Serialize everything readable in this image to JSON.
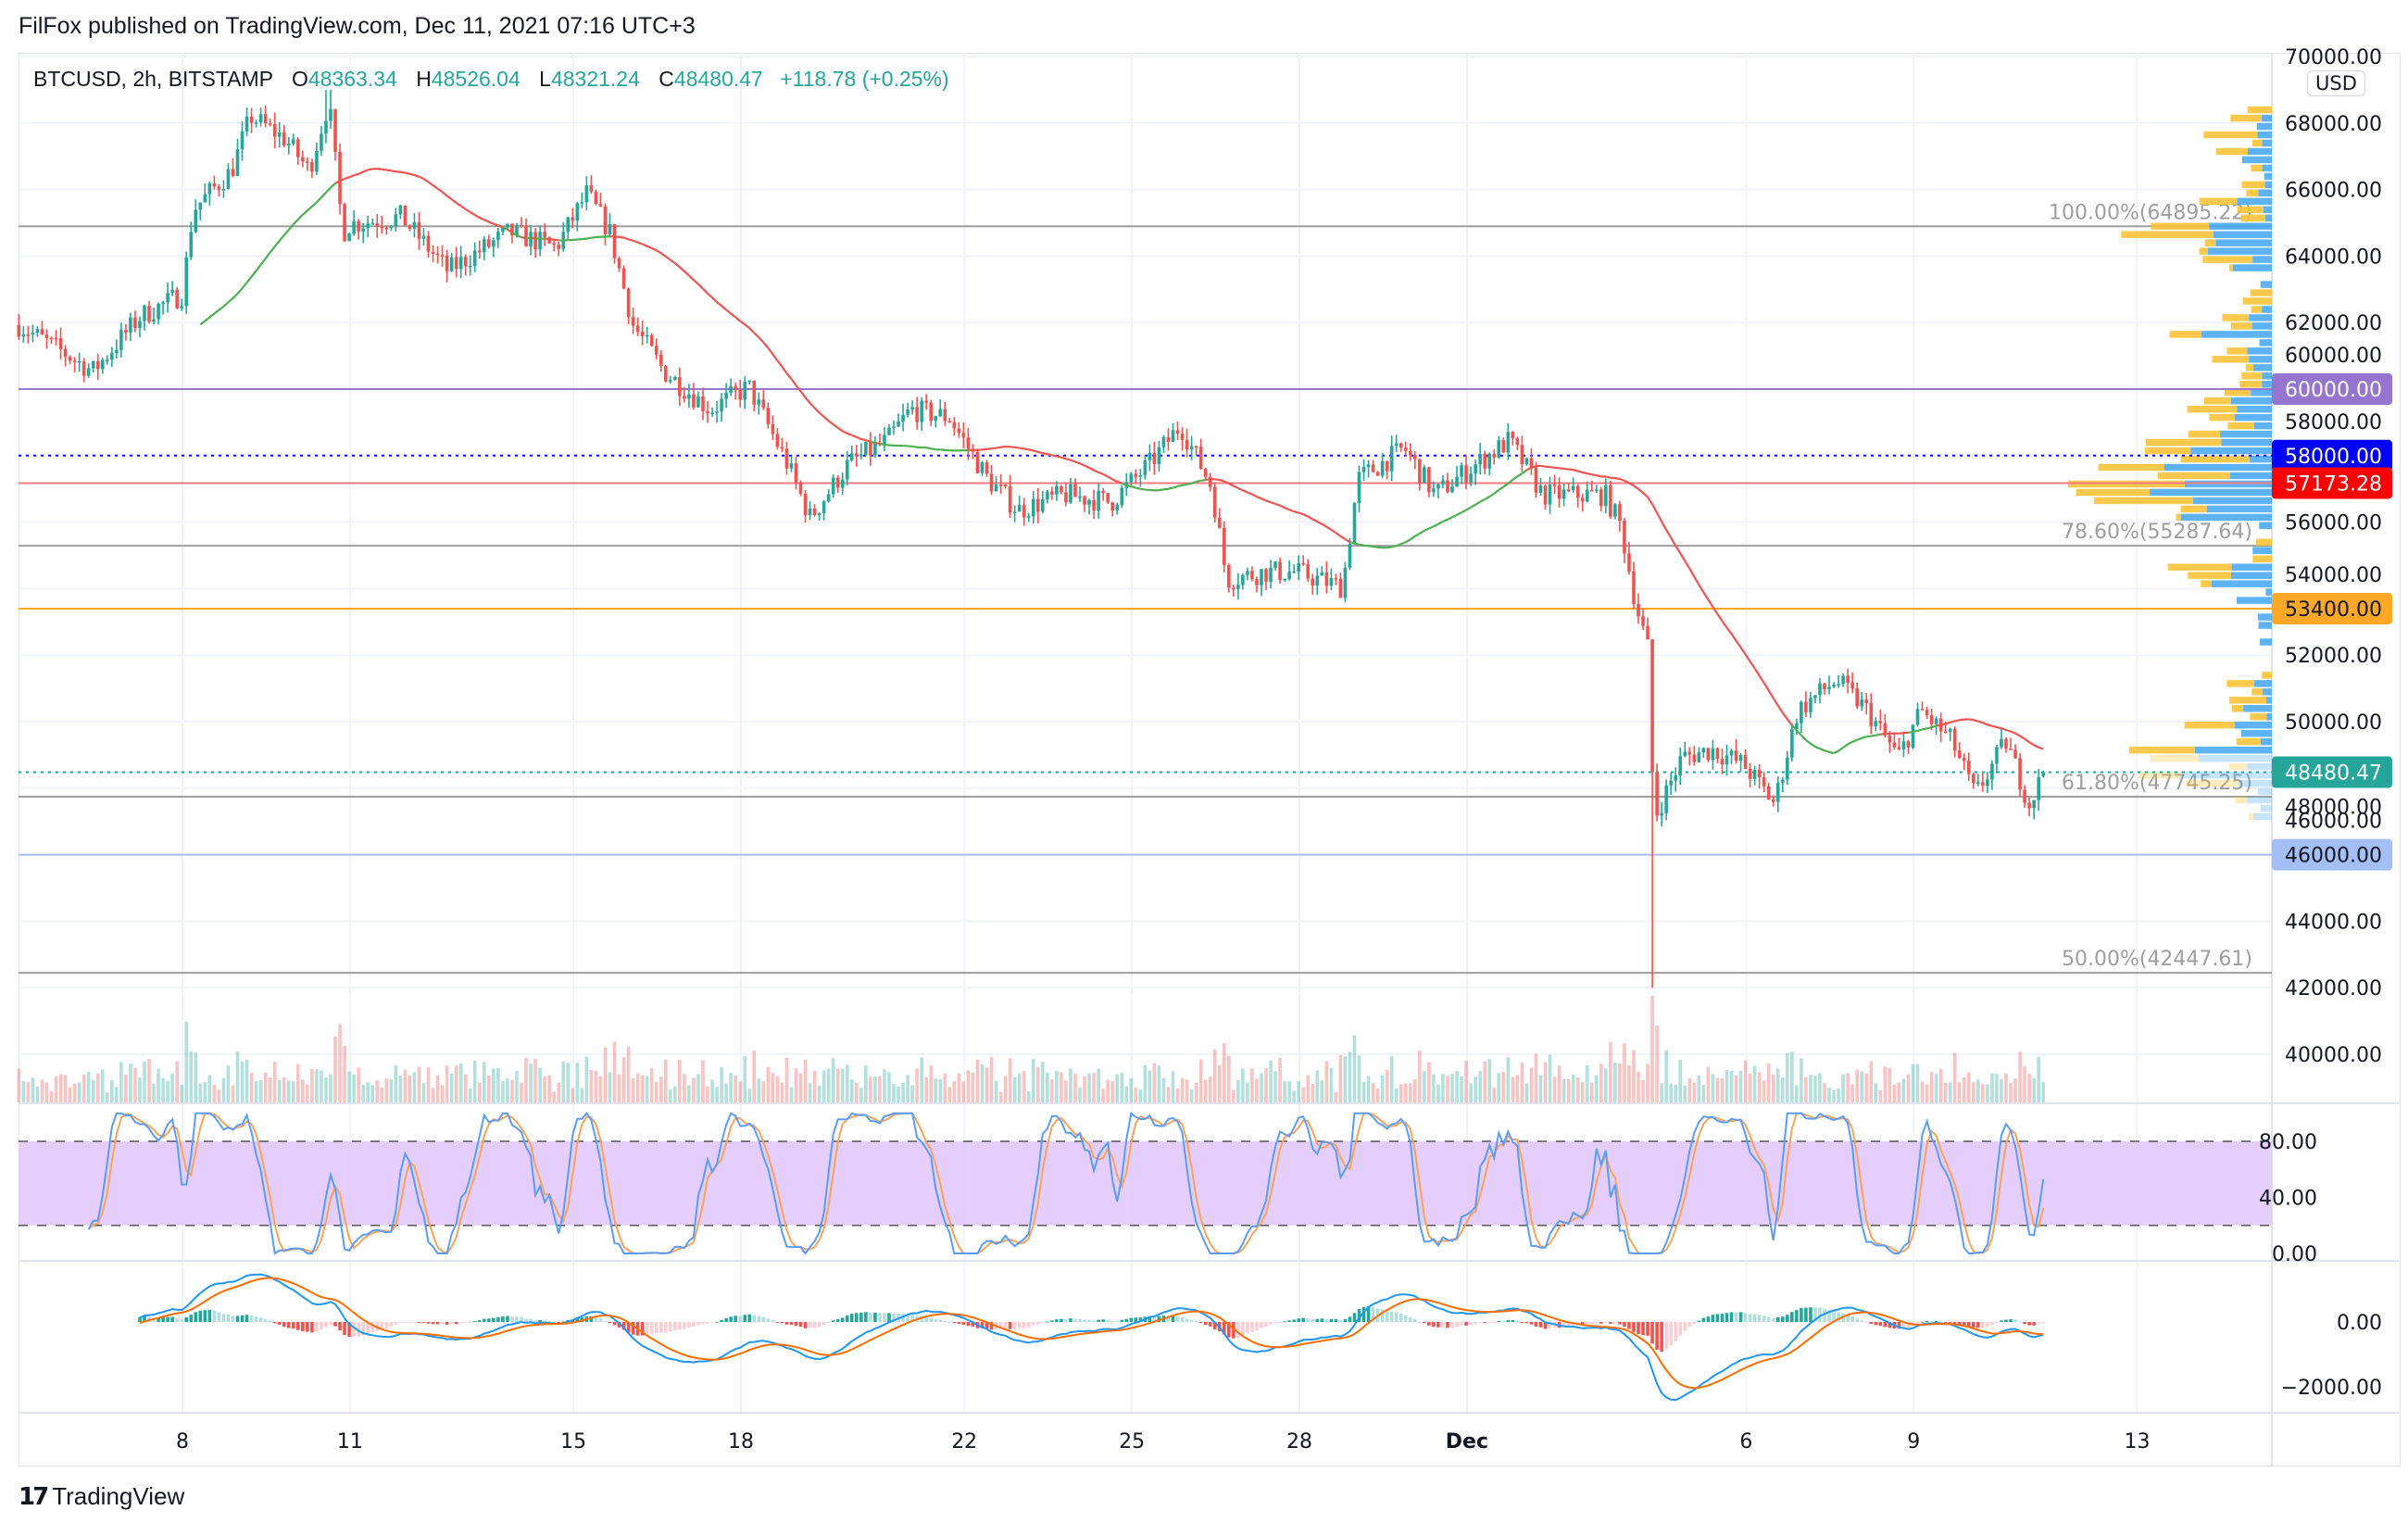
{
  "header": {
    "publish_line": "FilFox published on TradingView.com, Dec 11, 2021 07:16 UTC+3"
  },
  "legend": {
    "symbol": "BTCUSD, 2h, BITSTAMP",
    "o_label": "O",
    "o": "48363.34",
    "h_label": "H",
    "h": "48526.04",
    "l_label": "L",
    "l": "48321.24",
    "c_label": "C",
    "c": "48480.47",
    "change": "+118.78 (+0.25%)"
  },
  "price_axis": {
    "currency": "USD",
    "ticks": [
      "70000.00",
      "68000.00",
      "66000.00",
      "64000.00",
      "62000.00",
      "60000.00",
      "58000.00",
      "56000.00",
      "54000.00",
      "52000.00",
      "50000.00",
      "48000.00",
      "46000.00",
      "44000.00",
      "42000.00",
      "40000.00"
    ]
  },
  "levels": [
    {
      "value": 60000,
      "label": "60000.00",
      "color": "#9575cd",
      "text_color": "#ffffff",
      "style": "solid"
    },
    {
      "value": 58000,
      "label": "58000.00",
      "color": "#0000ff",
      "text_color": "#ffffff",
      "style": "dotted"
    },
    {
      "value": 57173.28,
      "label": "57173.28",
      "color": "#ff0000",
      "line_color": "#f77c80",
      "text_color": "#ffffff",
      "style": "solid"
    },
    {
      "value": 53400,
      "label": "53400.00",
      "color": "#ffa726",
      "text_color": "#131722",
      "style": "solid"
    },
    {
      "value": 48480.47,
      "label": "48480.47",
      "color": "#26a69a",
      "text_color": "#ffffff",
      "style": "dotted"
    },
    {
      "value": 46000,
      "label": "46000.00",
      "color": "#a4bff5",
      "text_color": "#131722",
      "style": "solid"
    }
  ],
  "fib": [
    {
      "value": 64895.22,
      "label": "100.00%(64895.22)"
    },
    {
      "value": 55287.64,
      "label": "78.60%(55287.64)"
    },
    {
      "value": 47745.25,
      "label": "61.80%(47745.25)"
    },
    {
      "value": 42447.61,
      "label": "50.00%(42447.61)"
    }
  ],
  "stoch_axis": {
    "ticks": [
      {
        "v": 80,
        "label": "80.00"
      },
      {
        "v": 40,
        "label": "40.00"
      },
      {
        "v": 0,
        "label": "0.00"
      }
    ],
    "upper": 80,
    "lower": 20
  },
  "macd_axis": {
    "ticks": [
      {
        "v": 0,
        "label": "0.00"
      },
      {
        "v": -2000,
        "label": "−2000.00"
      }
    ]
  },
  "time_axis": [
    {
      "label": "8",
      "day": 8
    },
    {
      "label": "11",
      "day": 11
    },
    {
      "label": "15",
      "day": 15
    },
    {
      "label": "18",
      "day": 18
    },
    {
      "label": "22",
      "day": 22
    },
    {
      "label": "25",
      "day": 25
    },
    {
      "label": "28",
      "day": 28
    },
    {
      "label": "Dec",
      "day": 31
    },
    {
      "label": "6",
      "day": 36
    },
    {
      "label": "9",
      "day": 39
    },
    {
      "label": "13",
      "day": 43
    }
  ],
  "footer": {
    "logo_text": "TradingView"
  },
  "colors": {
    "up": "#26a69a",
    "down": "#ef5350",
    "ma_above": "#ef5350",
    "ma_below": "#4caf50",
    "stoch_k": "#5b9cf6",
    "stoch_d": "#f7a35c",
    "stoch_band": "#e1c6fa",
    "macd": "#2196f3",
    "signal": "#ff6d00",
    "vp_up": "#fbc02d",
    "vp_down": "#42a5f5",
    "fib": "#9e9e9e"
  },
  "chart_data": {
    "type": "candlestick",
    "title": "BTCUSD, 2h, BITSTAMP",
    "x_unit": "day (Nov = day of month, Dec 1 = 31)",
    "ylim": [
      39000,
      70000
    ],
    "candles_per_day": 12,
    "start_day": 5.07,
    "close_path": [
      [
        5.07,
        61930
      ],
      [
        6.4,
        60540
      ],
      [
        7.23,
        62160
      ],
      [
        8.0,
        62860
      ],
      [
        8.19,
        65400
      ],
      [
        8.88,
        66570
      ],
      [
        9.22,
        68200
      ],
      [
        9.85,
        67500
      ],
      [
        10.27,
        66570
      ],
      [
        10.62,
        68660
      ],
      [
        10.87,
        64700
      ],
      [
        10.98,
        64950
      ],
      [
        11.92,
        65180
      ],
      [
        12.75,
        63560
      ],
      [
        13.86,
        64720
      ],
      [
        14.69,
        64250
      ],
      [
        15.24,
        65880
      ],
      [
        15.65,
        64720
      ],
      [
        16.07,
        61930
      ],
      [
        16.62,
        60540
      ],
      [
        17.45,
        59380
      ],
      [
        18.14,
        60070
      ],
      [
        18.83,
        57750
      ],
      [
        19.24,
        56130
      ],
      [
        19.93,
        57750
      ],
      [
        20.62,
        58450
      ],
      [
        21.04,
        59380
      ],
      [
        21.73,
        59150
      ],
      [
        22.42,
        57290
      ],
      [
        22.97,
        56360
      ],
      [
        23.8,
        56820
      ],
      [
        24.63,
        56600
      ],
      [
        25.32,
        57750
      ],
      [
        25.87,
        58910
      ],
      [
        26.43,
        57060
      ],
      [
        26.7,
        54270
      ],
      [
        27.39,
        54500
      ],
      [
        27.94,
        54500
      ],
      [
        28.77,
        54040
      ],
      [
        29.05,
        57290
      ],
      [
        29.88,
        58220
      ],
      [
        30.43,
        56820
      ],
      [
        30.98,
        57520
      ],
      [
        31.76,
        58450
      ],
      [
        32.36,
        56820
      ],
      [
        33.47,
        56820
      ],
      [
        33.75,
        55900
      ],
      [
        34.02,
        53570
      ],
      [
        34.24,
        52180
      ],
      [
        34.35,
        47080
      ],
      [
        34.85,
        48930
      ],
      [
        35.4,
        49160
      ],
      [
        35.96,
        48700
      ],
      [
        36.51,
        47540
      ],
      [
        36.92,
        50330
      ],
      [
        37.61,
        51250
      ],
      [
        38.17,
        50330
      ],
      [
        38.72,
        48930
      ],
      [
        39.13,
        50330
      ],
      [
        39.69,
        49400
      ],
      [
        40.1,
        47770
      ],
      [
        40.65,
        49400
      ],
      [
        41.07,
        47540
      ],
      [
        41.34,
        48480.47
      ]
    ],
    "notable_wicks": [
      {
        "day": 10.62,
        "high": 69000
      },
      {
        "day": 34.3,
        "low": 42000
      }
    ],
    "last_candle": {
      "open": 48363.34,
      "high": 48526.04,
      "low": 48321.24,
      "close": 48480.47
    },
    "indicators": [
      "Moving Average",
      "Volume",
      "Volume Profile",
      "Stoch RSI",
      "MACD"
    ]
  }
}
